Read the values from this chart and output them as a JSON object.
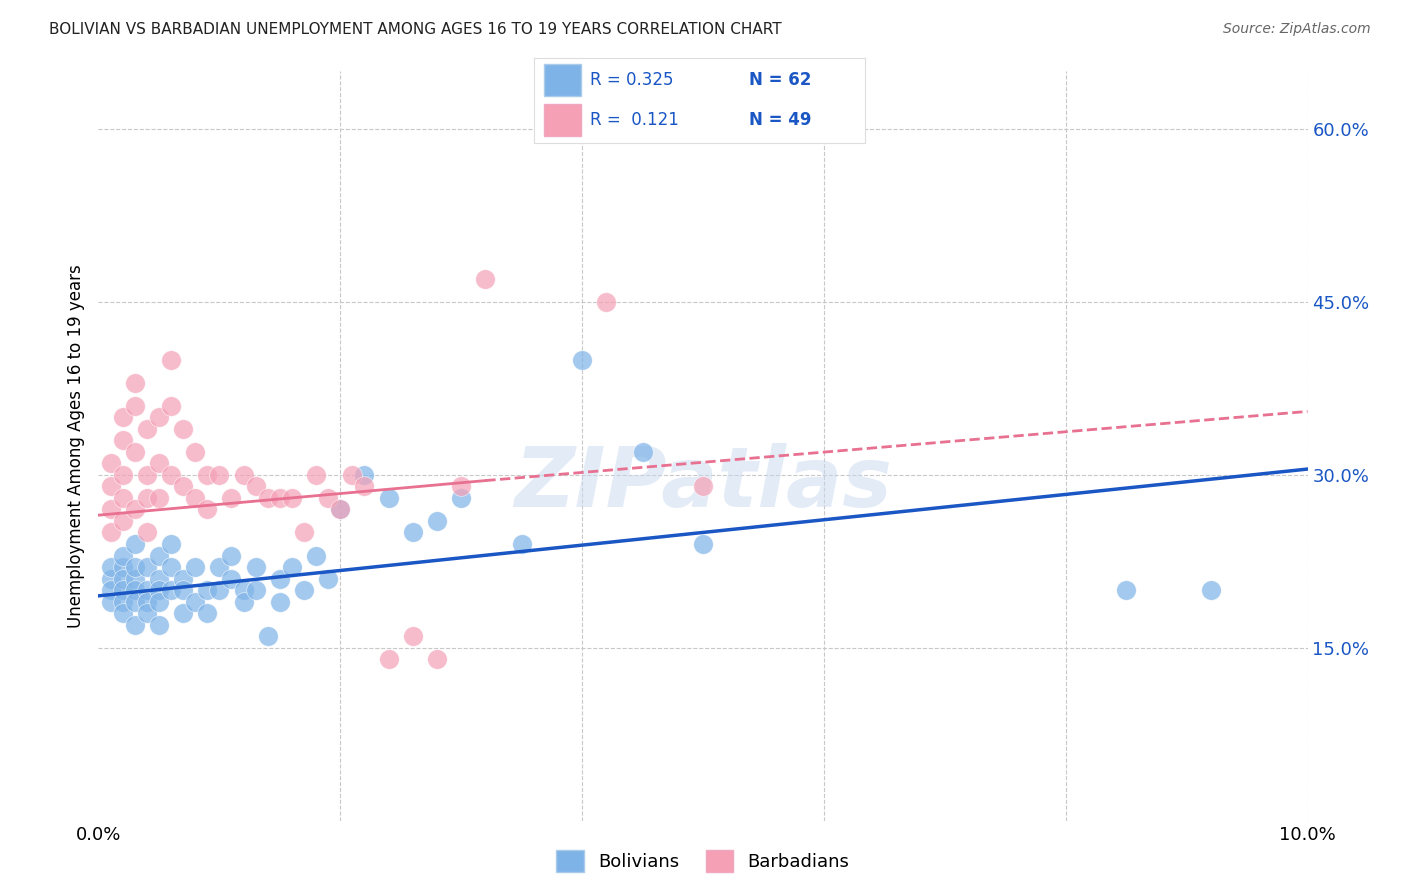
{
  "title": "BOLIVIAN VS BARBADIAN UNEMPLOYMENT AMONG AGES 16 TO 19 YEARS CORRELATION CHART",
  "source": "Source: ZipAtlas.com",
  "ylabel": "Unemployment Among Ages 16 to 19 years",
  "xlim": [
    0.0,
    0.1
  ],
  "ylim": [
    0.0,
    0.65
  ],
  "yticks": [
    0.15,
    0.3,
    0.45,
    0.6
  ],
  "ytick_labels": [
    "15.0%",
    "30.0%",
    "45.0%",
    "60.0%"
  ],
  "xticks": [
    0.0,
    0.02,
    0.04,
    0.06,
    0.08,
    0.1
  ],
  "xtick_labels": [
    "0.0%",
    "",
    "",
    "",
    "",
    "10.0%"
  ],
  "bolivians_color": "#7eb3e8",
  "barbadians_color": "#f5a0b5",
  "bolivian_line_color": "#1a56c4",
  "barbadian_line_color": "#e87090",
  "R_bolivians": 0.325,
  "N_bolivians": 62,
  "R_barbadians": 0.121,
  "N_barbadians": 49,
  "watermark": "ZIPatlas",
  "background_color": "#ffffff",
  "grid_color": "#c8c8c8",
  "bolivians_x": [
    0.001,
    0.001,
    0.001,
    0.001,
    0.002,
    0.002,
    0.002,
    0.002,
    0.002,
    0.002,
    0.003,
    0.003,
    0.003,
    0.003,
    0.003,
    0.003,
    0.004,
    0.004,
    0.004,
    0.004,
    0.005,
    0.005,
    0.005,
    0.005,
    0.005,
    0.006,
    0.006,
    0.006,
    0.007,
    0.007,
    0.007,
    0.008,
    0.008,
    0.009,
    0.009,
    0.01,
    0.01,
    0.011,
    0.011,
    0.012,
    0.012,
    0.013,
    0.013,
    0.014,
    0.015,
    0.015,
    0.016,
    0.017,
    0.018,
    0.019,
    0.02,
    0.022,
    0.024,
    0.026,
    0.028,
    0.03,
    0.035,
    0.04,
    0.045,
    0.05,
    0.085,
    0.092
  ],
  "bolivians_y": [
    0.21,
    0.2,
    0.19,
    0.22,
    0.22,
    0.21,
    0.2,
    0.19,
    0.18,
    0.23,
    0.21,
    0.2,
    0.22,
    0.19,
    0.17,
    0.24,
    0.22,
    0.2,
    0.19,
    0.18,
    0.23,
    0.21,
    0.2,
    0.19,
    0.17,
    0.22,
    0.2,
    0.24,
    0.21,
    0.2,
    0.18,
    0.22,
    0.19,
    0.2,
    0.18,
    0.22,
    0.2,
    0.23,
    0.21,
    0.2,
    0.19,
    0.22,
    0.2,
    0.16,
    0.21,
    0.19,
    0.22,
    0.2,
    0.23,
    0.21,
    0.27,
    0.3,
    0.28,
    0.25,
    0.26,
    0.28,
    0.24,
    0.4,
    0.32,
    0.24,
    0.2,
    0.2
  ],
  "barbadians_x": [
    0.001,
    0.001,
    0.001,
    0.001,
    0.002,
    0.002,
    0.002,
    0.002,
    0.002,
    0.003,
    0.003,
    0.003,
    0.003,
    0.004,
    0.004,
    0.004,
    0.004,
    0.005,
    0.005,
    0.005,
    0.006,
    0.006,
    0.006,
    0.007,
    0.007,
    0.008,
    0.008,
    0.009,
    0.009,
    0.01,
    0.011,
    0.012,
    0.013,
    0.014,
    0.015,
    0.016,
    0.017,
    0.018,
    0.019,
    0.02,
    0.021,
    0.022,
    0.024,
    0.026,
    0.028,
    0.03,
    0.032,
    0.042,
    0.05
  ],
  "barbadians_y": [
    0.25,
    0.27,
    0.29,
    0.31,
    0.33,
    0.35,
    0.26,
    0.28,
    0.3,
    0.38,
    0.36,
    0.32,
    0.27,
    0.34,
    0.3,
    0.28,
    0.25,
    0.35,
    0.31,
    0.28,
    0.4,
    0.36,
    0.3,
    0.34,
    0.29,
    0.32,
    0.28,
    0.3,
    0.27,
    0.3,
    0.28,
    0.3,
    0.29,
    0.28,
    0.28,
    0.28,
    0.25,
    0.3,
    0.28,
    0.27,
    0.3,
    0.29,
    0.14,
    0.16,
    0.14,
    0.29,
    0.47,
    0.45,
    0.29
  ]
}
